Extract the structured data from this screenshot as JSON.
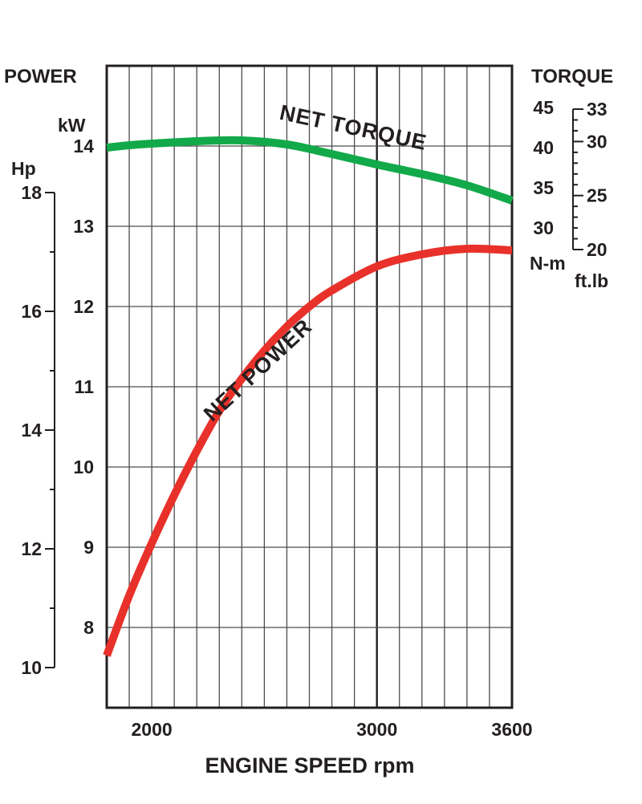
{
  "chart_data": {
    "type": "line",
    "xlabel": "ENGINE SPEED rpm",
    "x_ticks": [
      2000,
      3000,
      3600
    ],
    "xlim": [
      1800,
      3600
    ],
    "left_axis": {
      "title": "POWER",
      "kw": {
        "unit": "kW",
        "ticks": [
          8,
          9,
          10,
          11,
          12,
          13,
          14
        ],
        "ylim": [
          7,
          15
        ]
      },
      "hp": {
        "unit": "Hp",
        "ticks": [
          10,
          12,
          14,
          16,
          18
        ]
      }
    },
    "right_axis": {
      "title": "TORQUE",
      "nm": {
        "unit": "N-m",
        "ticks": [
          30,
          35,
          40,
          45
        ]
      },
      "ftlb": {
        "unit": "ft.lb",
        "ticks": [
          20,
          25,
          30,
          33
        ]
      }
    },
    "series": [
      {
        "name": "NET TORQUE",
        "color": "#12a94a",
        "axis": "N-m",
        "points": [
          [
            1800,
            40.0
          ],
          [
            1900,
            40.3
          ],
          [
            2000,
            40.5
          ],
          [
            2200,
            40.8
          ],
          [
            2400,
            40.9
          ],
          [
            2600,
            40.4
          ],
          [
            2800,
            39.2
          ],
          [
            3000,
            37.9
          ],
          [
            3200,
            36.7
          ],
          [
            3400,
            35.3
          ],
          [
            3600,
            33.4
          ]
        ]
      },
      {
        "name": "NET POWER",
        "color": "#e8312a",
        "axis": "kW",
        "points": [
          [
            1800,
            7.65
          ],
          [
            1900,
            8.4
          ],
          [
            2000,
            9.05
          ],
          [
            2100,
            9.65
          ],
          [
            2200,
            10.2
          ],
          [
            2300,
            10.7
          ],
          [
            2400,
            11.1
          ],
          [
            2500,
            11.45
          ],
          [
            2600,
            11.75
          ],
          [
            2700,
            12.0
          ],
          [
            2800,
            12.2
          ],
          [
            3000,
            12.5
          ],
          [
            3200,
            12.65
          ],
          [
            3400,
            12.72
          ],
          [
            3600,
            12.7
          ]
        ]
      }
    ]
  }
}
